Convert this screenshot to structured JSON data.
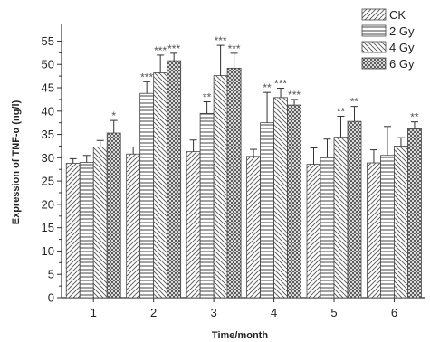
{
  "chart_data": {
    "type": "bar",
    "title": "",
    "xlabel": "Time/month",
    "ylabel": "Expression of TNF-α (ng/l)",
    "categories": [
      "1",
      "2",
      "3",
      "4",
      "5",
      "6"
    ],
    "ylim": [
      0,
      58
    ],
    "yticks": [
      0,
      5,
      10,
      15,
      20,
      25,
      30,
      35,
      40,
      45,
      50,
      55
    ],
    "grid": false,
    "legend_position": "top-right",
    "series": [
      {
        "name": "CK",
        "pattern": "diagonal-up",
        "values": [
          28.8,
          30.8,
          31.3,
          30.3,
          28.6,
          28.9
        ],
        "errors": [
          1.0,
          1.5,
          2.5,
          1.5,
          3.5,
          2.8
        ],
        "significance": [
          "",
          "",
          "",
          "",
          "",
          ""
        ]
      },
      {
        "name": "2 Gy",
        "pattern": "horizontal",
        "values": [
          29.0,
          43.8,
          39.5,
          37.5,
          30.0,
          30.5
        ],
        "errors": [
          1.5,
          2.5,
          2.5,
          6.5,
          4.0,
          6.2
        ],
        "significance": [
          "",
          "***",
          "**",
          "**",
          "",
          ""
        ]
      },
      {
        "name": "4 Gy",
        "pattern": "diagonal-down",
        "values": [
          32.3,
          48.2,
          47.6,
          42.9,
          34.4,
          32.5
        ],
        "errors": [
          1.4,
          3.8,
          6.5,
          2.0,
          4.5,
          1.8
        ],
        "significance": [
          "",
          "***",
          "***",
          "***",
          "**",
          ""
        ]
      },
      {
        "name": "6 Gy",
        "pattern": "crosshatch",
        "values": [
          35.3,
          50.8,
          49.2,
          41.3,
          37.8,
          36.2
        ],
        "errors": [
          2.7,
          1.6,
          3.2,
          1.2,
          3.2,
          1.5
        ],
        "significance": [
          "*",
          "***",
          "***",
          "***",
          "**",
          "**"
        ]
      }
    ]
  }
}
